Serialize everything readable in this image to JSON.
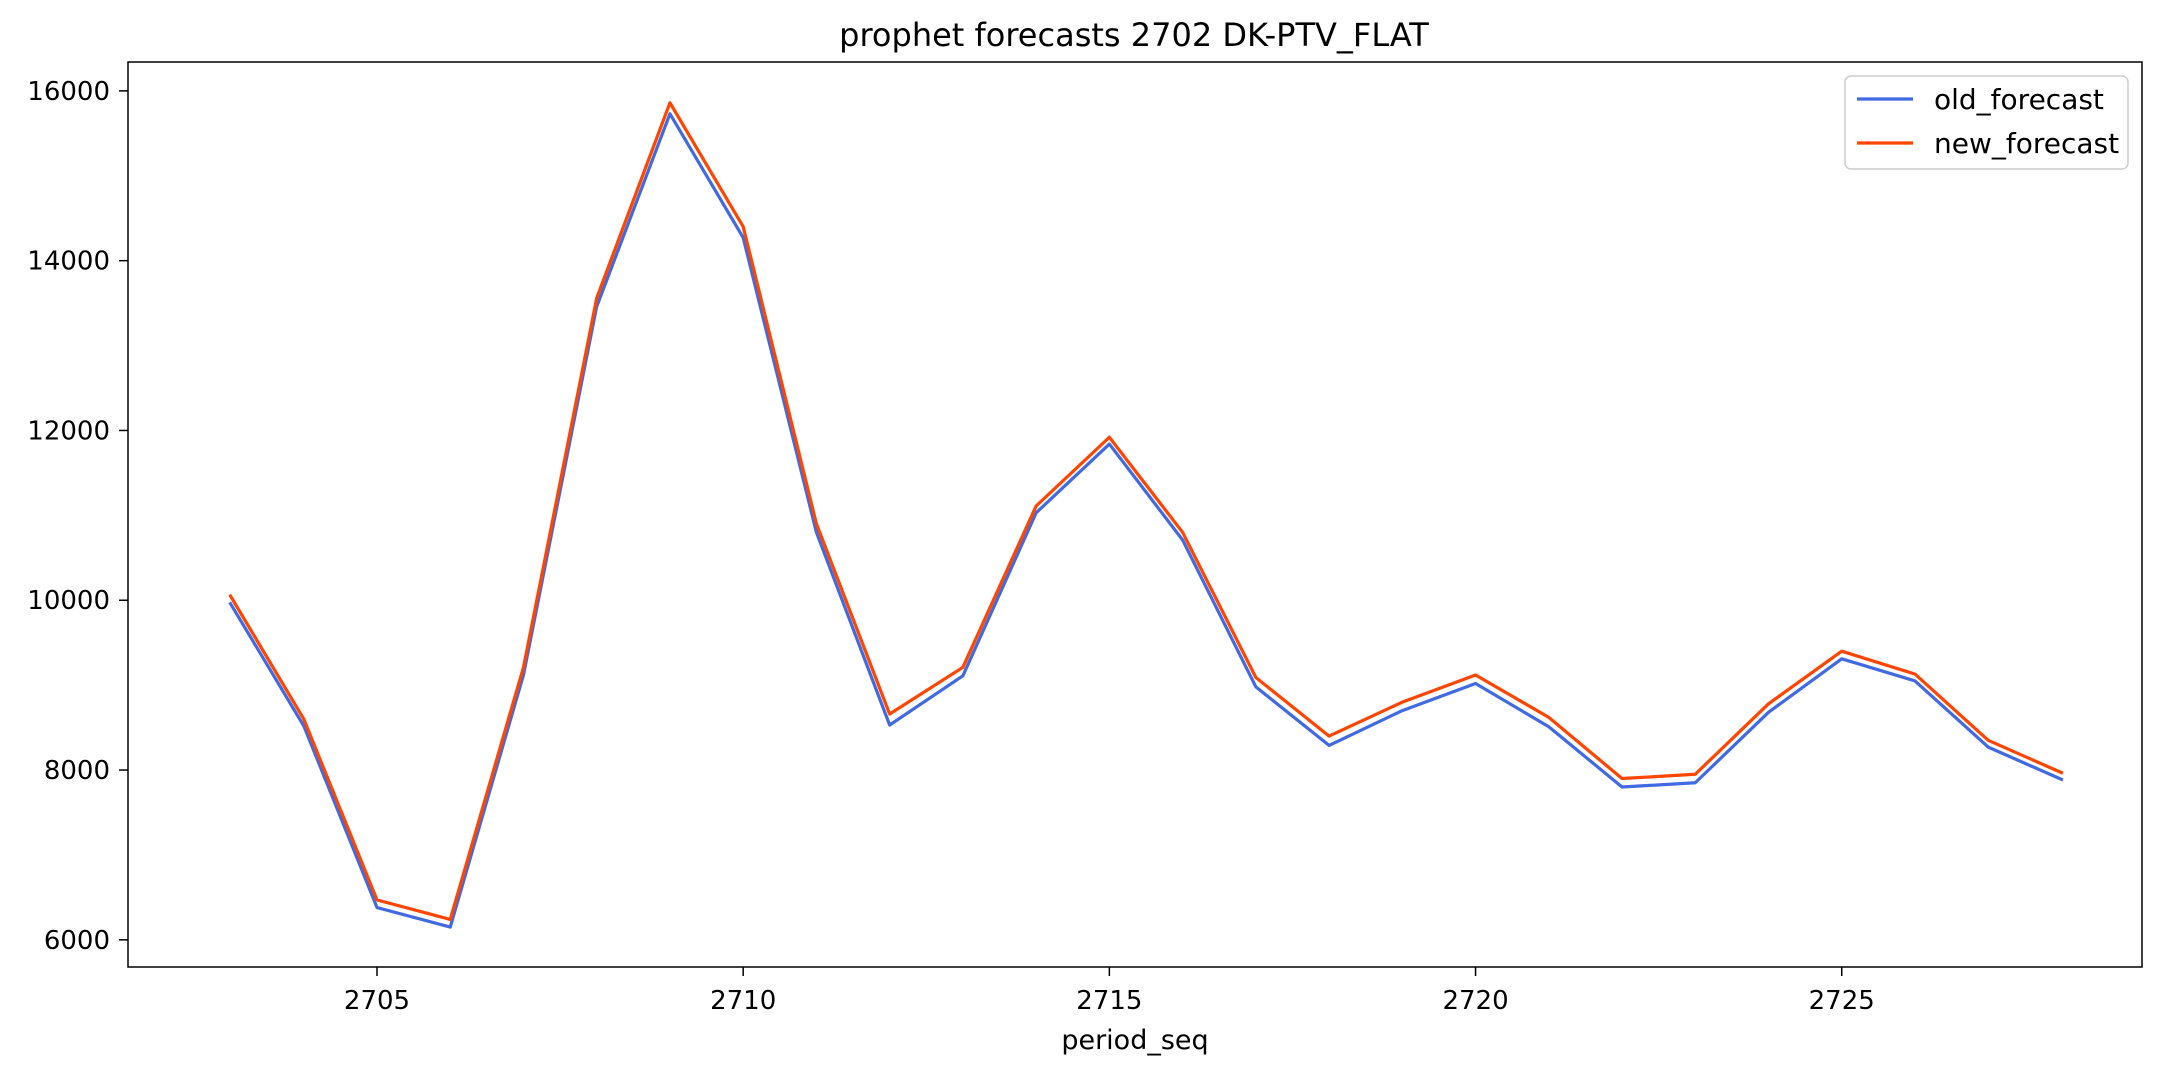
{
  "chart_data": {
    "type": "line",
    "title": "prophet forecasts 2702 DK-PTV_FLAT",
    "xlabel": "period_seq",
    "ylabel": "",
    "x": [
      2703,
      2704,
      2705,
      2706,
      2707,
      2708,
      2709,
      2710,
      2711,
      2712,
      2713,
      2714,
      2715,
      2716,
      2717,
      2718,
      2719,
      2720,
      2721,
      2722,
      2723,
      2724,
      2725,
      2726,
      2727,
      2728
    ],
    "xlim": [
      2701.6,
      2729.1
    ],
    "ylim": [
      5680,
      16340
    ],
    "xticks": [
      2705,
      2710,
      2715,
      2720,
      2725
    ],
    "yticks": [
      6000,
      8000,
      10000,
      12000,
      14000,
      16000
    ],
    "grid": false,
    "legend_position": "upper right",
    "series": [
      {
        "name": "old_forecast",
        "color": "#4169e1",
        "values": [
          9960,
          8520,
          6380,
          6150,
          9120,
          13460,
          15730,
          14270,
          10800,
          8530,
          9110,
          11030,
          11840,
          10710,
          8980,
          8290,
          8700,
          9020,
          8510,
          7800,
          7850,
          8680,
          9310,
          9050,
          8270,
          7890
        ]
      },
      {
        "name": "new_forecast",
        "color": "#ff4500",
        "values": [
          10050,
          8600,
          6470,
          6240,
          9210,
          13560,
          15860,
          14400,
          10900,
          8660,
          9210,
          11110,
          11920,
          10800,
          9090,
          8400,
          8800,
          9120,
          8620,
          7900,
          7950,
          8780,
          9400,
          9130,
          8350,
          7970
        ]
      }
    ]
  }
}
